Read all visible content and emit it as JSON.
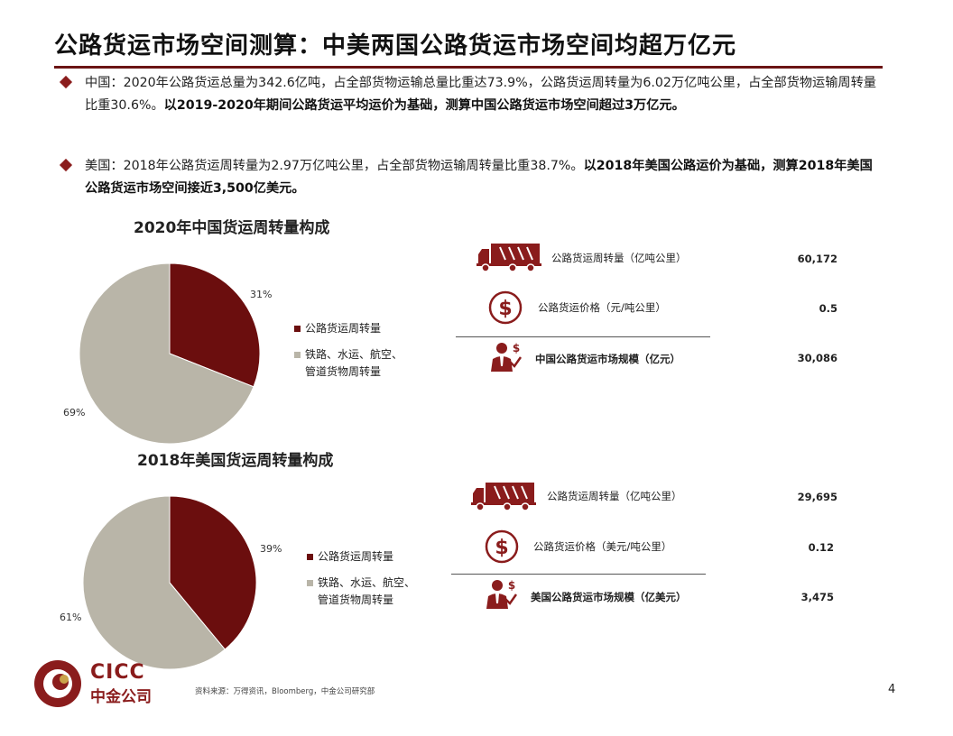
{
  "title": "公路货运市场空间测算：中美两国公路货运市场空间均超万亿元",
  "bullets": {
    "china": {
      "normal": "中国：2020年公路货运总量为342.6亿吨，占全部货物运输总量比重达73.9%，公路货运周转量为6.02万亿吨公里，占全部货物运输周转量比重30.6%。",
      "bold": "以2019-2020年期间公路货运平均运价为基础，测算中国公路货运市场空间超过3万亿元。"
    },
    "us": {
      "normal": "美国：2018年公路货运周转量为2.97万亿吨公里，占全部货物运输周转量比重38.7%。",
      "bold": "以2018年美国公路运价为基础，测算2018年美国公路货运市场空间接近3,500亿美元。"
    }
  },
  "charts": [
    {
      "title": "2020年中国货运周转量构成",
      "slices": [
        {
          "label": "公路货运周转量",
          "value": 31,
          "pct_label": "31%",
          "color": "#6b0e0e"
        },
        {
          "label_line1": "铁路、水运、航空、",
          "label_line2": "管道货物周转量",
          "value": 69,
          "pct_label": "69%",
          "color": "#b9b5a8"
        }
      ]
    },
    {
      "title": "2018年美国货运周转量构成",
      "slices": [
        {
          "label": "公路货运周转量",
          "value": 39,
          "pct_label": "39%",
          "color": "#6b0e0e"
        },
        {
          "label_line1": "铁路、水运、航空、",
          "label_line2": "管道货物周转量",
          "value": 61,
          "pct_label": "61%",
          "color": "#b9b5a8"
        }
      ]
    }
  ],
  "chart_data": [
    {
      "type": "pie",
      "title": "2020年中国货运周转量构成",
      "categories": [
        "公路货运周转量",
        "铁路、水运、航空、管道货物周转量"
      ],
      "values": [
        31,
        69
      ],
      "legend": "right"
    },
    {
      "type": "pie",
      "title": "2018年美国货运周转量构成",
      "categories": [
        "公路货运周转量",
        "铁路、水运、航空、管道货物周转量"
      ],
      "values": [
        39,
        61
      ],
      "legend": "right"
    }
  ],
  "tables": {
    "china": [
      {
        "icon": "truck-icon",
        "label": "公路货运周转量（亿吨公里）",
        "value": "60,172"
      },
      {
        "icon": "dollar-icon",
        "label": "公路货运价格（元/吨公里）",
        "value": "0.5"
      },
      {
        "icon": "businessman-growth-icon",
        "label": "中国公路货运市场规模（亿元）",
        "value": "30,086"
      }
    ],
    "us": [
      {
        "icon": "truck-icon",
        "label": "公路货运周转量（亿吨公里）",
        "value": "29,695"
      },
      {
        "icon": "dollar-icon",
        "label": "公路货运价格（美元/吨公里）",
        "value": "0.12"
      },
      {
        "icon": "businessman-growth-icon",
        "label": "美国公路货运市场规模（亿美元）",
        "value": "3,475"
      }
    ]
  },
  "footer": {
    "source": "资料来源：万得资讯，Bloomberg，中金公司研究部",
    "page_number": "4"
  },
  "logo": {
    "en": "CICC",
    "cn": "中金公司"
  },
  "colors": {
    "accent": "#8a1c1c",
    "dark_red": "#6b0e0e",
    "grey": "#b9b5a8"
  }
}
